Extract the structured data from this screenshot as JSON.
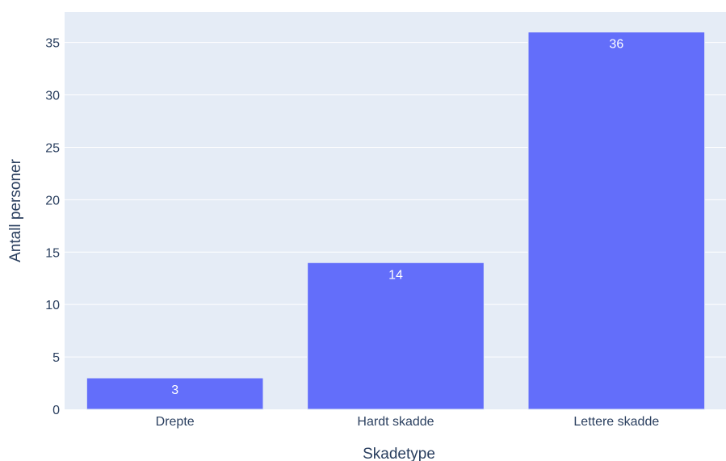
{
  "chart_data": {
    "type": "bar",
    "categories": [
      "Drepte",
      "Hardt skadde",
      "Lettere skadde"
    ],
    "values": [
      3,
      14,
      36
    ],
    "data_labels": [
      "3",
      "14",
      "36"
    ],
    "xlabel": "Skadetype",
    "ylabel": "Antall personer",
    "ylim": [
      0,
      37.9
    ],
    "yticks": [
      0,
      5,
      10,
      15,
      20,
      25,
      30,
      35
    ],
    "grid": true,
    "colors": {
      "bar": "#636efa",
      "plot_background": "#e5ecf6",
      "gridline": "#ffffff",
      "text": "#2a3f5f",
      "bar_label": "#ffffff"
    }
  }
}
